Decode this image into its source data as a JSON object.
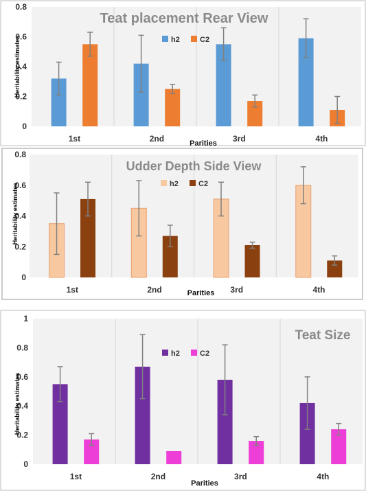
{
  "chart_data": [
    {
      "type": "bar",
      "title": "Teat placement  Rear View",
      "xlabel": "Parities",
      "ylabel": "Heritability estimates",
      "categories": [
        "1st",
        "2nd",
        "3rd",
        "4th"
      ],
      "ylim": [
        0,
        0.8
      ],
      "yticks": [
        "0",
        "0.2",
        "0.4",
        "0.6",
        "0.8"
      ],
      "grid": "vertical",
      "legend_position": "top-center",
      "series": [
        {
          "name": "h2",
          "color": "#5b9bd5",
          "values": [
            0.32,
            0.42,
            0.55,
            0.59
          ],
          "err_low": [
            0.21,
            0.23,
            0.44,
            0.46
          ],
          "err_high": [
            0.43,
            0.61,
            0.66,
            0.72
          ]
        },
        {
          "name": "C2",
          "color": "#ed7d31",
          "values": [
            0.55,
            0.25,
            0.17,
            0.11
          ],
          "err_low": [
            0.47,
            0.22,
            0.13,
            0.02
          ],
          "err_high": [
            0.63,
            0.28,
            0.21,
            0.2
          ]
        }
      ]
    },
    {
      "type": "bar",
      "title": "Udder Depth Side View",
      "xlabel": "Parities",
      "ylabel": "Heritability estimates",
      "categories": [
        "1st",
        "2nd",
        "3rd",
        "4th"
      ],
      "ylim": [
        0,
        0.8
      ],
      "yticks": [
        "0",
        "0.2",
        "0.4",
        "0.6",
        "0.8"
      ],
      "grid": "vertical",
      "legend_position": "top-center",
      "series": [
        {
          "name": "h2",
          "color": "#f8c9a0",
          "values": [
            0.35,
            0.45,
            0.51,
            0.6
          ],
          "err_low": [
            0.15,
            0.27,
            0.4,
            0.48
          ],
          "err_high": [
            0.55,
            0.63,
            0.62,
            0.72
          ]
        },
        {
          "name": "C2",
          "color": "#8b4010",
          "values": [
            0.51,
            0.27,
            0.21,
            0.11
          ],
          "err_low": [
            0.4,
            0.2,
            0.19,
            0.08
          ],
          "err_high": [
            0.62,
            0.34,
            0.23,
            0.14
          ]
        }
      ]
    },
    {
      "type": "bar",
      "title": "Teat Size",
      "xlabel": "Parities",
      "ylabel": "Heritability estimates",
      "categories": [
        "1st",
        "2nd",
        "3rd",
        "4th"
      ],
      "ylim": [
        0,
        1
      ],
      "yticks": [
        "0",
        "0.2",
        "0.4",
        "0.6",
        "0.8",
        "1"
      ],
      "grid": "vertical",
      "legend_position": "top-center",
      "series": [
        {
          "name": "h2",
          "color": "#7030a0",
          "values": [
            0.55,
            0.67,
            0.58,
            0.42
          ],
          "err_low": [
            0.43,
            0.45,
            0.34,
            0.24
          ],
          "err_high": [
            0.67,
            0.89,
            0.82,
            0.6
          ]
        },
        {
          "name": "C2",
          "color": "#ee3ed8",
          "values": [
            0.17,
            0.09,
            0.16,
            0.24
          ],
          "err_low": [
            0.13,
            null,
            0.13,
            0.2
          ],
          "err_high": [
            0.21,
            null,
            0.19,
            0.28
          ]
        }
      ]
    }
  ]
}
